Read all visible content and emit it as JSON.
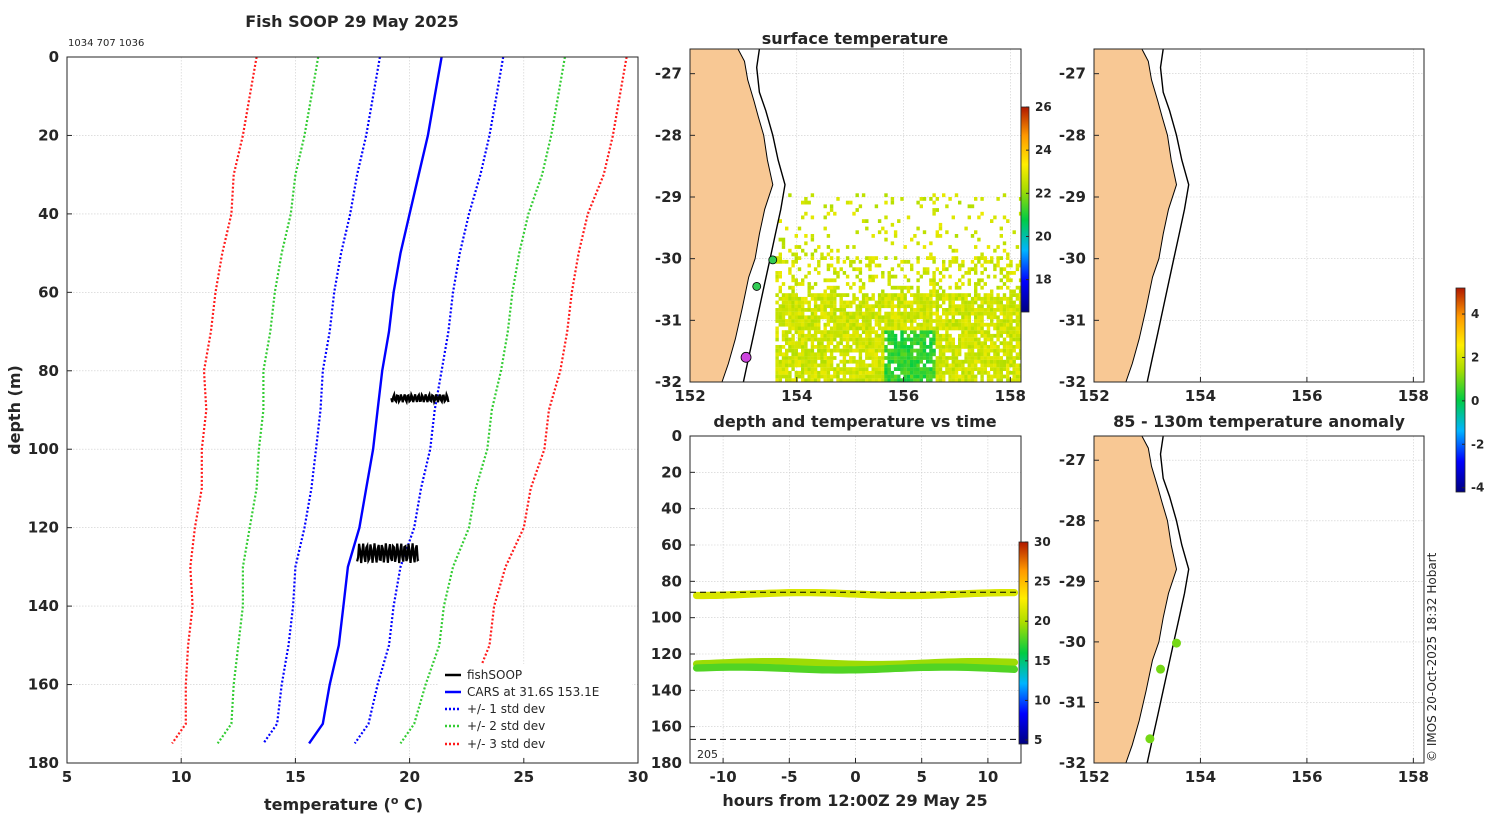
{
  "figure": {
    "copyright": "© IMOS 20-Oct-2025 18:32 Hobart",
    "colors": {
      "land": "#f8c894",
      "coast": "#000000",
      "grid": "#cccccc",
      "text": "#262626"
    }
  },
  "chart_data": [
    {
      "id": "profile",
      "type": "line",
      "title": "Fish SOOP 29 May 2025",
      "subtitle": "1034 707 1036",
      "xlabel": "temperature (",
      "xlabel_sup": "o",
      "xlabel_end": " C)",
      "ylabel": "depth (m)",
      "xlim": [
        5,
        30
      ],
      "ylim": [
        0,
        180
      ],
      "xticks": [
        5,
        10,
        15,
        20,
        25,
        30
      ],
      "yticks": [
        0,
        20,
        40,
        60,
        80,
        100,
        120,
        140,
        160,
        180
      ],
      "depth": [
        0,
        10,
        20,
        30,
        40,
        50,
        60,
        70,
        80,
        90,
        100,
        110,
        120,
        130,
        140,
        150,
        160,
        170,
        175
      ],
      "cars_mean": [
        21.4,
        21.1,
        20.8,
        20.4,
        20.0,
        19.6,
        19.3,
        19.1,
        18.8,
        18.6,
        18.4,
        18.1,
        17.8,
        17.3,
        17.1,
        16.9,
        16.5,
        16.2,
        15.6
      ],
      "std": [
        2.7,
        2.7,
        2.7,
        2.7,
        2.6,
        2.6,
        2.6,
        2.6,
        2.6,
        2.5,
        2.5,
        2.4,
        2.4,
        2.3,
        2.2,
        2.2,
        2.1,
        2.0,
        2.0
      ],
      "series_colors": {
        "cars": "#0000ff",
        "std1": "#0000ff",
        "std2": "#33cc33",
        "std3": "#ff1a1a",
        "fish": "#000000"
      },
      "fishsoop": [
        {
          "depth_top": 86,
          "depth_bottom": 88,
          "t_min": 19.2,
          "t_max": 21.7
        },
        {
          "depth_top": 124,
          "depth_bottom": 129,
          "t_min": 17.7,
          "t_max": 20.4
        }
      ],
      "legend": {
        "position": "bottom-right",
        "items": [
          "fishSOOP",
          "CARS at 31.6S 153.1E",
          "+/- 1 std dev",
          "+/- 2 std dev",
          "+/- 3 std dev"
        ]
      }
    },
    {
      "id": "surface-temperature",
      "type": "heatmap",
      "title": "surface temperature",
      "xlim": [
        152,
        158.2
      ],
      "ylim": [
        -32,
        -26.6
      ],
      "xticks": [
        152,
        154,
        156,
        158
      ],
      "yticks": [
        -27,
        -28,
        -29,
        -30,
        -31,
        -32
      ],
      "colorbar": {
        "min": 16.5,
        "max": 26,
        "ticks": [
          18,
          20,
          22,
          24,
          26
        ]
      },
      "stations": [
        {
          "lon": 153.55,
          "lat": -30.02,
          "color": "#33cc55"
        },
        {
          "lon": 153.25,
          "lat": -30.45,
          "color": "#33cc55"
        },
        {
          "lon": 153.05,
          "lat": -31.6,
          "color": "#cc44dd"
        }
      ]
    },
    {
      "id": "depth-time",
      "type": "scatter",
      "title": "depth and temperature vs time",
      "xlabel": "hours from 12:00Z 29 May 25",
      "xlim": [
        -12.5,
        12.5
      ],
      "ylim": [
        0,
        180
      ],
      "xticks": [
        -10,
        -5,
        0,
        5,
        10
      ],
      "yticks": [
        0,
        20,
        40,
        60,
        80,
        100,
        120,
        140,
        160,
        180
      ],
      "reference_depths": [
        86,
        167
      ],
      "annotation": "205",
      "bands": [
        {
          "depth_min": 85,
          "depth_max": 89,
          "temperature": 21.5
        },
        {
          "depth_min": 123,
          "depth_max": 127,
          "temperature": 19.5
        },
        {
          "depth_min": 126,
          "depth_max": 130,
          "temperature": 17.8
        }
      ],
      "colorbar": {
        "min": 4.5,
        "max": 30,
        "ticks": [
          5,
          10,
          15,
          20,
          25,
          30
        ]
      }
    },
    {
      "id": "map-upper-right",
      "type": "scatter",
      "title": "",
      "xlim": [
        152,
        158.2
      ],
      "ylim": [
        -32,
        -26.6
      ],
      "xticks": [
        152,
        154,
        156,
        158
      ],
      "yticks": [
        -27,
        -28,
        -29,
        -30,
        -31,
        -32
      ]
    },
    {
      "id": "temperature-anomaly",
      "type": "scatter",
      "title": "85 - 130m temperature anomaly",
      "xlim": [
        152,
        158.2
      ],
      "ylim": [
        -32,
        -26.6
      ],
      "xticks": [
        152,
        154,
        156,
        158
      ],
      "yticks": [
        -27,
        -28,
        -29,
        -30,
        -31,
        -32
      ],
      "stations": [
        {
          "lon": 153.55,
          "lat": -30.02,
          "anomaly": 1.0
        },
        {
          "lon": 153.25,
          "lat": -30.45,
          "anomaly": 1.0
        },
        {
          "lon": 153.05,
          "lat": -31.6,
          "anomaly": 1.0
        }
      ],
      "colorbar": {
        "min": -4.2,
        "max": 5.2,
        "ticks": [
          -4,
          -2,
          0,
          2,
          4
        ]
      }
    }
  ]
}
